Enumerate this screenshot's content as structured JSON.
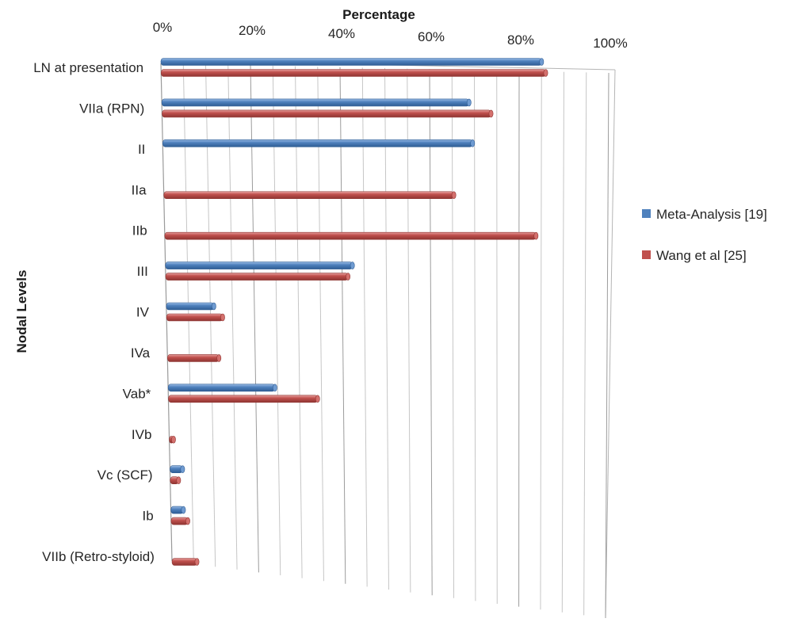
{
  "chart_data": {
    "type": "bar",
    "orientation": "horizontal",
    "style": "3d-cylinder",
    "title": "",
    "xlabel": "Percentage",
    "ylabel": "Nodal Levels",
    "xlim": [
      0,
      100
    ],
    "x_ticks": [
      "0%",
      "20%",
      "40%",
      "60%",
      "80%",
      "100%"
    ],
    "grid": true,
    "legend_position": "right",
    "categories": [
      "LN at presentation",
      "VIIa (RPN)",
      "II",
      "IIa",
      "IIb",
      "III",
      "IV",
      "IVa",
      "Vab*",
      "IVb",
      "Vc (SCF)",
      "Ib",
      "VIIb (Retro-styloid)"
    ],
    "series": [
      {
        "name": "Meta-Analysis [19]",
        "color": "#4f81bd",
        "values": [
          85,
          69,
          70,
          null,
          null,
          43,
          11,
          null,
          25,
          null,
          3,
          3,
          null
        ]
      },
      {
        "name": "Wang et al [25]",
        "color": "#c0504d",
        "values": [
          86,
          74,
          null,
          66,
          85,
          42,
          13,
          12,
          35,
          1,
          2,
          4,
          6
        ]
      }
    ]
  }
}
